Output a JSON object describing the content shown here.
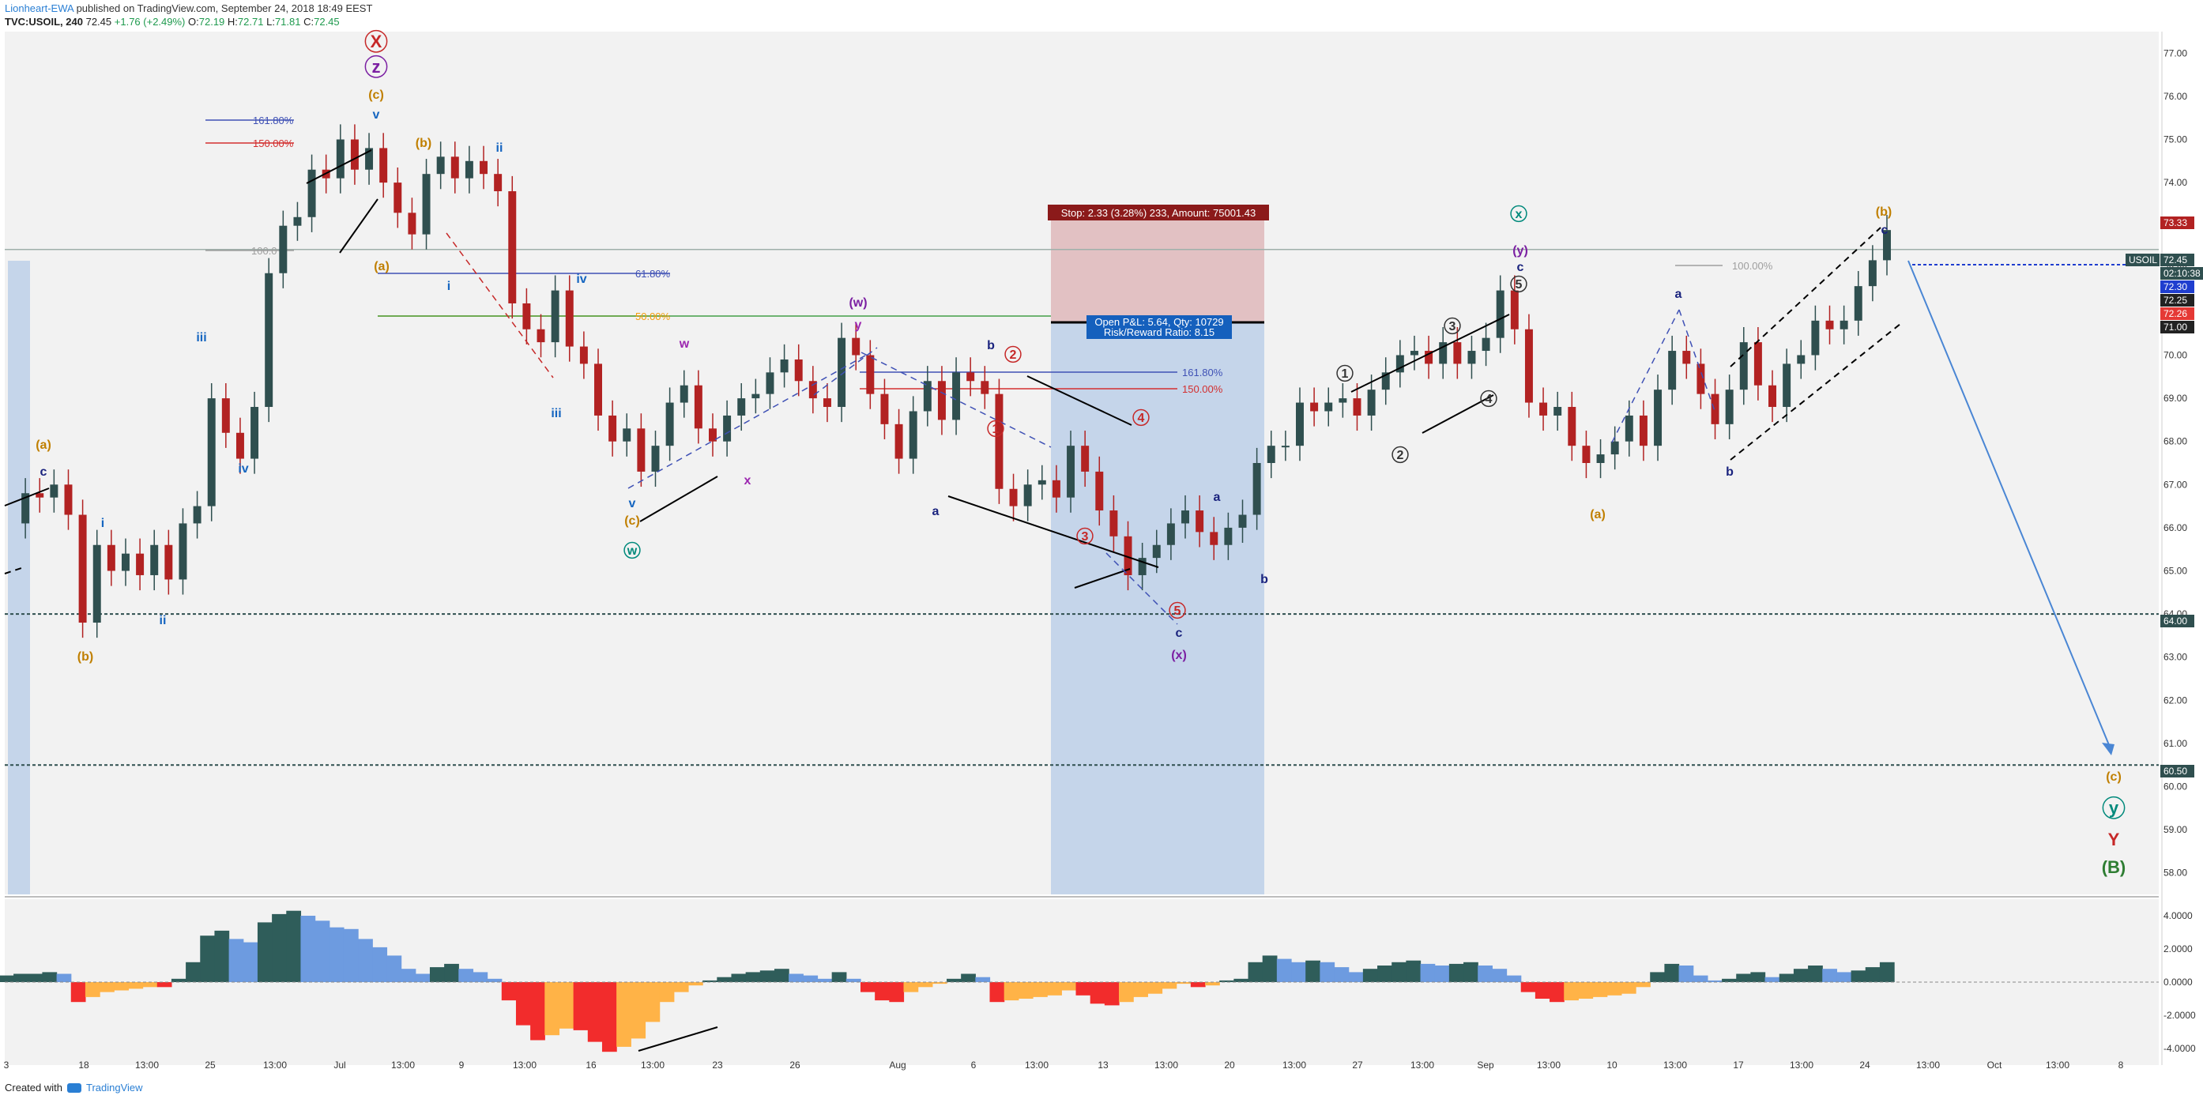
{
  "header": {
    "author": "Lionheart-EWA",
    "published": "published on TradingView.com, September 24, 2018 18:49 EEST",
    "symbol": "TVC:USOIL, 240",
    "last": "72.45",
    "change": "+1.76 (+2.49%)",
    "o_label": "O:",
    "open": "72.19",
    "h_label": "H:",
    "high": "72.71",
    "l_label": "L:",
    "low": "71.81",
    "c_label": "C:",
    "close": "72.45"
  },
  "footer": {
    "created_with": "Created with",
    "brand": "TradingView"
  },
  "colors": {
    "up": "#2f4f4f",
    "down": "#b22222",
    "axis_bg": "#ffffff",
    "pane_bg": "#f2f2f2",
    "osc_green": "#2f5d5a",
    "osc_blue": "#6d9be0",
    "osc_red": "#f22c2c",
    "osc_orange": "#ffb347",
    "position_blue": "#c5d5ea",
    "position_red": "#e2c1c3"
  },
  "chart_data": {
    "type": "candlestick",
    "symbol": "TVC:USOIL",
    "interval": "240",
    "ylim": [
      57.5,
      77.5
    ],
    "y_ticks": [
      "77.00",
      "76.00",
      "75.00",
      "74.00",
      "73.00",
      "72.00",
      "71.00",
      "70.00",
      "69.00",
      "68.00",
      "67.00",
      "66.00",
      "65.00",
      "64.00",
      "63.00",
      "62.00",
      "61.00",
      "60.00",
      "59.00",
      "58.00"
    ],
    "x_ticks": [
      "3",
      "18",
      "13:00",
      "25",
      "13:00",
      "Jul",
      "13:00",
      "9",
      "13:00",
      "16",
      "13:00",
      "23",
      "26",
      "Aug",
      "6",
      "13:00",
      "13",
      "13:00",
      "20",
      "13:00",
      "27",
      "13:00",
      "Sep",
      "13:00",
      "10",
      "13:00",
      "17",
      "13:00",
      "24",
      "13:00",
      "Oct",
      "13:00",
      "8"
    ],
    "price_path": [
      66.1,
      66.8,
      66.7,
      67.0,
      66.3,
      63.8,
      65.6,
      65.0,
      65.4,
      64.9,
      65.6,
      64.8,
      66.1,
      66.5,
      69.0,
      68.2,
      67.6,
      68.8,
      71.9,
      73.0,
      73.2,
      74.3,
      74.1,
      75.0,
      74.3,
      74.8,
      74.0,
      73.3,
      72.8,
      74.2,
      74.6,
      74.1,
      74.5,
      74.2,
      73.8,
      71.2,
      70.6,
      70.3,
      71.5,
      70.2,
      69.8,
      68.6,
      68.0,
      68.3,
      67.3,
      67.9,
      68.9,
      69.3,
      68.3,
      68.0,
      68.6,
      69.0,
      69.1,
      69.6,
      69.9,
      69.4,
      69.0,
      68.8,
      70.4,
      70.0,
      69.1,
      68.4,
      67.6,
      68.7,
      69.4,
      68.5,
      69.6,
      69.4,
      69.1,
      66.9,
      66.5,
      67.0,
      67.1,
      66.7,
      67.9,
      67.3,
      66.4,
      65.8,
      64.9,
      65.3,
      65.6,
      66.1,
      66.4,
      65.9,
      65.6,
      66.0,
      66.3,
      67.5,
      67.9,
      67.9,
      68.9,
      68.7,
      68.9,
      69.0,
      68.6,
      69.2,
      69.6,
      70.0,
      70.1,
      69.8,
      70.3,
      69.8,
      70.1,
      70.4,
      71.5,
      70.6,
      68.9,
      68.6,
      68.8,
      67.9,
      67.5,
      67.7,
      68.0,
      68.6,
      67.9,
      69.2,
      70.1,
      69.8,
      69.1,
      68.4,
      69.2,
      70.3,
      69.3,
      68.8,
      69.8,
      70.0,
      70.8,
      70.6,
      70.8,
      71.6,
      72.2,
      72.9
    ],
    "horizontal_levels": [
      64.0,
      60.5,
      72.45
    ],
    "price_labels": [
      {
        "text": "73.33",
        "color": "#b22222"
      },
      {
        "text": "USOIL",
        "color": "#2f4f4f"
      },
      {
        "text": "72.45",
        "color": "#2f4f4f"
      },
      {
        "text": "02:10:38",
        "color": "#2f4f4f"
      },
      {
        "text": "72.30",
        "color": "#1f3ecf"
      },
      {
        "text": "72.25",
        "color": "#222222"
      },
      {
        "text": "72.26",
        "color": "#e53935"
      },
      {
        "text": "71.00",
        "color": "#222222"
      },
      {
        "text": "64.00",
        "color": "#2f4f4f"
      },
      {
        "text": "60.50",
        "color": "#2f4f4f"
      }
    ],
    "fib_labels": [
      {
        "text": "161.80%",
        "color": "#3f51b5"
      },
      {
        "text": "150.00%",
        "color": "#d32f2f"
      },
      {
        "text": "100.0",
        "color": "#9e9e9e"
      },
      {
        "text": "61.80%",
        "color": "#3f51b5"
      },
      {
        "text": "50.00%",
        "color": "#f59e0b"
      },
      {
        "text": "161.80%",
        "color": "#3f51b5"
      },
      {
        "text": "150.00%",
        "color": "#d32f2f"
      },
      {
        "text": "100.00%",
        "color": "#9e9e9e"
      }
    ],
    "position": {
      "stop_label": "Stop: 2.33 (3.28%) 233, Amount: 75001.43",
      "pl_label": "Open P&L: 5.64, Qty: 10729",
      "rr_label": "Risk/Reward Ratio: 8.15"
    },
    "wave_labels": [
      {
        "text": "X",
        "color": "#c62828"
      },
      {
        "text": "z",
        "color": "#7b1fa2"
      },
      {
        "text": "(c)",
        "color": "#c07f00"
      },
      {
        "text": "v",
        "color": "#1565c0"
      },
      {
        "text": "(b)",
        "color": "#c07f00"
      },
      {
        "text": "ii",
        "color": "#1565c0"
      },
      {
        "text": "(a)",
        "color": "#c07f00"
      },
      {
        "text": "i",
        "color": "#1565c0"
      },
      {
        "text": "iv",
        "color": "#1565c0"
      },
      {
        "text": "iii",
        "color": "#1565c0"
      },
      {
        "text": "(a)",
        "color": "#c07f00"
      },
      {
        "text": "c",
        "color": "#1a237e"
      },
      {
        "text": "i",
        "color": "#1565c0"
      },
      {
        "text": "ii",
        "color": "#1565c0"
      },
      {
        "text": "(b)",
        "color": "#c07f00"
      },
      {
        "text": "iii",
        "color": "#1565c0"
      },
      {
        "text": "iv",
        "color": "#1565c0"
      },
      {
        "text": "v",
        "color": "#1565c0"
      },
      {
        "text": "(c)",
        "color": "#c07f00"
      },
      {
        "text": "w",
        "color": "#00897b"
      },
      {
        "text": "w",
        "color": "#9c27b0"
      },
      {
        "text": "x",
        "color": "#9c27b0"
      },
      {
        "text": "(w)",
        "color": "#7b1fa2"
      },
      {
        "text": "y",
        "color": "#9c27b0"
      },
      {
        "text": "b",
        "color": "#1a237e"
      },
      {
        "text": "2",
        "color": "#c62828"
      },
      {
        "text": "1",
        "color": "#c62828"
      },
      {
        "text": "a",
        "color": "#1a237e"
      },
      {
        "text": "3",
        "color": "#c62828"
      },
      {
        "text": "4",
        "color": "#c62828"
      },
      {
        "text": "5",
        "color": "#c62828"
      },
      {
        "text": "c",
        "color": "#1a237e"
      },
      {
        "text": "(x)",
        "color": "#7b1fa2"
      },
      {
        "text": "a",
        "color": "#1a237e"
      },
      {
        "text": "b",
        "color": "#1a237e"
      },
      {
        "text": "1",
        "color": "#333333"
      },
      {
        "text": "2",
        "color": "#333333"
      },
      {
        "text": "3",
        "color": "#333333"
      },
      {
        "text": "4",
        "color": "#333333"
      },
      {
        "text": "5",
        "color": "#333333"
      },
      {
        "text": "c",
        "color": "#1a237e"
      },
      {
        "text": "(y)",
        "color": "#7b1fa2"
      },
      {
        "text": "x",
        "color": "#00897b"
      },
      {
        "text": "(a)",
        "color": "#c07f00"
      },
      {
        "text": "a",
        "color": "#1a237e"
      },
      {
        "text": "b",
        "color": "#1a237e"
      },
      {
        "text": "(b)",
        "color": "#c07f00"
      },
      {
        "text": "c",
        "color": "#1a237e"
      },
      {
        "text": "(c)",
        "color": "#c07f00"
      },
      {
        "text": "y",
        "color": "#00897b"
      },
      {
        "text": "Y",
        "color": "#c62828"
      },
      {
        "text": "(B)",
        "color": "#2e7d32"
      }
    ],
    "oscillator": {
      "ylim": [
        -5,
        5
      ],
      "y_ticks": [
        "4.0000",
        "2.0000",
        "0.0000",
        "-2.0000",
        "-4.0000"
      ],
      "values": [
        0.4,
        0.5,
        0.5,
        0.6,
        0.5,
        -1.2,
        -0.9,
        -0.6,
        -0.5,
        -0.4,
        -0.3,
        -0.3,
        0.2,
        1.2,
        2.8,
        3.1,
        2.6,
        2.4,
        3.6,
        4.1,
        4.3,
        4.0,
        3.7,
        3.3,
        3.2,
        2.6,
        2.1,
        1.6,
        0.8,
        0.5,
        0.9,
        1.1,
        0.8,
        0.6,
        0.2,
        -1.1,
        -2.6,
        -3.5,
        -3.2,
        -2.8,
        -2.9,
        -3.6,
        -4.2,
        -3.9,
        -3.4,
        -2.4,
        -1.2,
        -0.6,
        -0.2,
        0.1,
        0.3,
        0.5,
        0.6,
        0.7,
        0.8,
        0.5,
        0.4,
        0.2,
        0.6,
        0.2,
        -0.6,
        -1.1,
        -1.2,
        -0.6,
        -0.3,
        -0.1,
        0.2,
        0.5,
        0.3,
        -1.2,
        -1.1,
        -1.0,
        -0.9,
        -0.8,
        -0.5,
        -0.8,
        -1.3,
        -1.4,
        -1.2,
        -0.9,
        -0.7,
        -0.4,
        -0.1,
        -0.3,
        -0.2,
        0.1,
        0.2,
        1.2,
        1.6,
        1.4,
        1.2,
        1.3,
        1.2,
        0.9,
        0.6,
        0.8,
        1.0,
        1.2,
        1.3,
        1.1,
        1.0,
        1.1,
        1.2,
        1.0,
        0.8,
        0.4,
        -0.6,
        -1.0,
        -1.2,
        -1.1,
        -1.0,
        -0.9,
        -0.8,
        -0.7,
        -0.3,
        0.6,
        1.1,
        1.0,
        0.4,
        0.1,
        0.2,
        0.5,
        0.6,
        0.3,
        0.5,
        0.8,
        1.0,
        0.8,
        0.6,
        0.7,
        0.9,
        1.2
      ]
    },
    "projection": {
      "from": 72.8,
      "to": 60.9
    }
  }
}
